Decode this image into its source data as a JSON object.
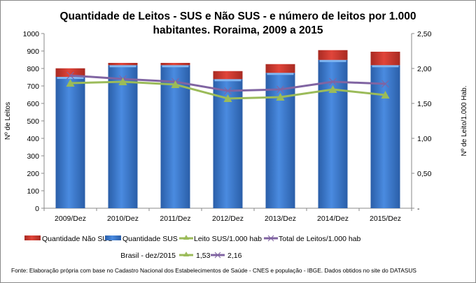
{
  "chart_data": {
    "type": "bar",
    "title_line1": "Quantidade de Leitos - SUS e Não SUS - e número de leitos por 1.000",
    "title_line2": "habitantes. Roraima, 2009 a 2015",
    "categories": [
      "2009/Dez",
      "2010/Dez",
      "2011/Dez",
      "2012/Dez",
      "2013/Dez",
      "2014/Dez",
      "2015/Dez"
    ],
    "ylabel": "Nº de Leitos",
    "y2label": "Nº de Leito/1.000 Hab.",
    "ylim": [
      0,
      1000
    ],
    "y2lim": [
      0,
      2.5
    ],
    "yticks": [
      "0",
      "100",
      "200",
      "300",
      "400",
      "500",
      "600",
      "700",
      "800",
      "900",
      "1000"
    ],
    "y2ticks": [
      "-",
      "0,50",
      "1,00",
      "1,50",
      "2,00",
      "2,50"
    ],
    "grid": false,
    "legend_position": "bottom",
    "series": [
      {
        "name": "Quantidade Não SUS",
        "kind": "stacked-bar",
        "axis": "left",
        "color": "#c0392b",
        "values": [
          49,
          13,
          13,
          46,
          50,
          56,
          77
        ]
      },
      {
        "name": "Quantidade SUS",
        "kind": "stacked-bar",
        "axis": "left",
        "color": "#3a78c9",
        "values": [
          752,
          819,
          819,
          739,
          775,
          849,
          819
        ]
      },
      {
        "name": "Leito SUS/1.000 hab",
        "kind": "line",
        "marker": "triangle",
        "axis": "right",
        "color": "#9bbb59",
        "values": [
          1.79,
          1.81,
          1.77,
          1.57,
          1.59,
          1.7,
          1.62
        ]
      },
      {
        "name": "Total de Leitos/1.000 hab",
        "kind": "line",
        "marker": "x",
        "axis": "right",
        "color": "#8064a2",
        "values": [
          1.9,
          1.85,
          1.81,
          1.68,
          1.7,
          1.81,
          1.78
        ]
      }
    ],
    "reference": {
      "label": "Brasil -  dez/2015",
      "sus_value": "1,53",
      "total_value": "2,16"
    },
    "source": "Fonte: Elaboração própria com base no  Cadastro Nacional dos Estabelecimentos de Saúde - CNES e população - IBGE. Dados obtidos no site do DATASUS"
  }
}
